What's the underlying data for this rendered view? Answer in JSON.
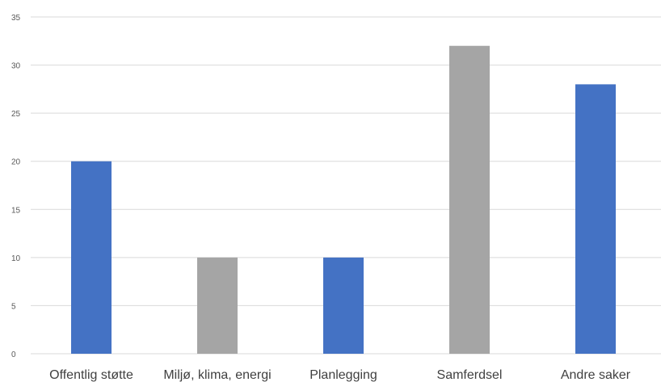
{
  "chart_data": {
    "type": "bar",
    "title": "",
    "xlabel": "",
    "ylabel": "",
    "categories": [
      "Offentlig støtte",
      "Miljø, klima, energi",
      "Planlegging",
      "Samferdsel",
      "Andre saker"
    ],
    "values": [
      20,
      10,
      10,
      32,
      28
    ],
    "bar_colors": [
      "#4472C4",
      "#A5A5A5",
      "#4472C4",
      "#A5A5A5",
      "#4472C4"
    ],
    "ylim": [
      0,
      35
    ],
    "yticks": [
      0,
      5,
      10,
      15,
      20,
      25,
      30,
      35
    ],
    "grid": true,
    "legend": "none"
  },
  "colors": {
    "gridline": "#D9D9D9",
    "axis_text": "#595959",
    "category_text": "#404040"
  }
}
